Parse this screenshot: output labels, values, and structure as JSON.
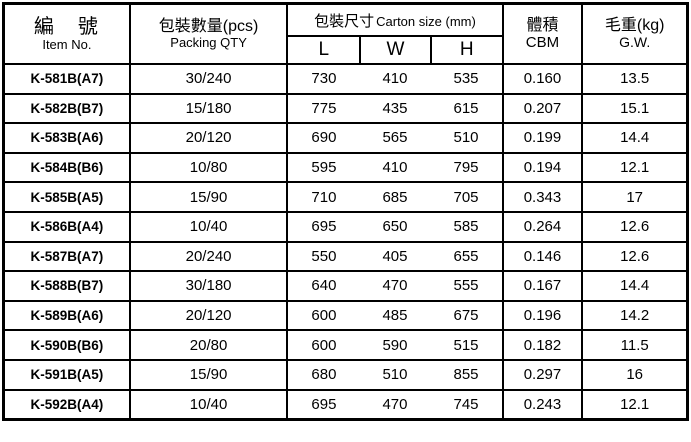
{
  "table": {
    "header": {
      "item_no": {
        "zh": "編　號",
        "en": "Item No."
      },
      "packing_qty": {
        "zh": "包裝數量(pcs)",
        "en": "Packing QTY"
      },
      "carton_size": {
        "zh": "包裝尺寸",
        "en": "Carton size (mm)"
      },
      "dims": [
        "L",
        "W",
        "H"
      ],
      "cbm": {
        "zh": "體積",
        "en": "CBM"
      },
      "gw": {
        "zh": "毛重(kg)",
        "en": "G.W."
      }
    },
    "rows": [
      {
        "item": "K-581B(A7)",
        "qty": "30/240",
        "l": "730",
        "w": "410",
        "h": "535",
        "cbm": "0.160",
        "gw": "13.5"
      },
      {
        "item": "K-582B(B7)",
        "qty": "15/180",
        "l": "775",
        "w": "435",
        "h": "615",
        "cbm": "0.207",
        "gw": "15.1"
      },
      {
        "item": "K-583B(A6)",
        "qty": "20/120",
        "l": "690",
        "w": "565",
        "h": "510",
        "cbm": "0.199",
        "gw": "14.4"
      },
      {
        "item": "K-584B(B6)",
        "qty": "10/80",
        "l": "595",
        "w": "410",
        "h": "795",
        "cbm": "0.194",
        "gw": "12.1"
      },
      {
        "item": "K-585B(A5)",
        "qty": "15/90",
        "l": "710",
        "w": "685",
        "h": "705",
        "cbm": "0.343",
        "gw": "17"
      },
      {
        "item": "K-586B(A4)",
        "qty": "10/40",
        "l": "695",
        "w": "650",
        "h": "585",
        "cbm": "0.264",
        "gw": "12.6"
      },
      {
        "item": "K-587B(A7)",
        "qty": "20/240",
        "l": "550",
        "w": "405",
        "h": "655",
        "cbm": "0.146",
        "gw": "12.6"
      },
      {
        "item": "K-588B(B7)",
        "qty": "30/180",
        "l": "640",
        "w": "470",
        "h": "555",
        "cbm": "0.167",
        "gw": "14.4"
      },
      {
        "item": "K-589B(A6)",
        "qty": "20/120",
        "l": "600",
        "w": "485",
        "h": "675",
        "cbm": "0.196",
        "gw": "14.2"
      },
      {
        "item": "K-590B(B6)",
        "qty": "20/80",
        "l": "600",
        "w": "590",
        "h": "515",
        "cbm": "0.182",
        "gw": "11.5"
      },
      {
        "item": "K-591B(A5)",
        "qty": "15/90",
        "l": "680",
        "w": "510",
        "h": "855",
        "cbm": "0.297",
        "gw": "16"
      },
      {
        "item": "K-592B(A4)",
        "qty": "10/40",
        "l": "695",
        "w": "470",
        "h": "745",
        "cbm": "0.243",
        "gw": "12.1"
      }
    ]
  },
  "colors": {
    "border": "#000000",
    "background": "#ffffff",
    "text": "#000000"
  }
}
